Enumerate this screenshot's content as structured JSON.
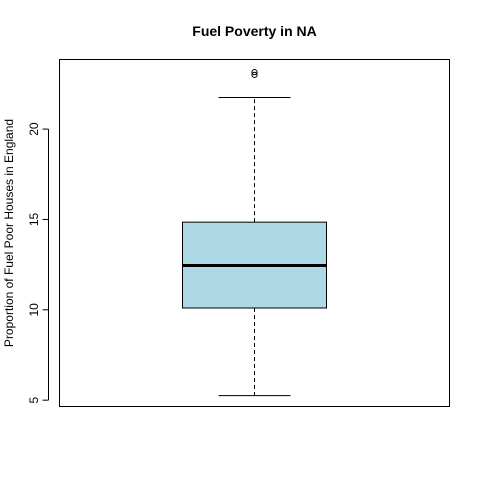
{
  "chart_data": {
    "type": "boxplot",
    "title": "Fuel Poverty in NA",
    "xlabel": "",
    "ylabel": "Proportion of Fuel Poor Houses in England",
    "ylim": [
      4.65,
      23.85
    ],
    "y_ticks": [
      5,
      10,
      15,
      20
    ],
    "y_tick_labels": [
      "5",
      "10",
      "15",
      "20"
    ],
    "grid": false,
    "legend": "none",
    "series": [
      {
        "min": 5.25,
        "q1": 10.1,
        "median": 12.45,
        "q3": 14.85,
        "max": 21.75,
        "outliers": [
          23.0,
          23.15
        ]
      }
    ],
    "colors": {
      "box_fill": "#add8e6",
      "box_stroke": "#000000",
      "axis": "#000000"
    }
  }
}
